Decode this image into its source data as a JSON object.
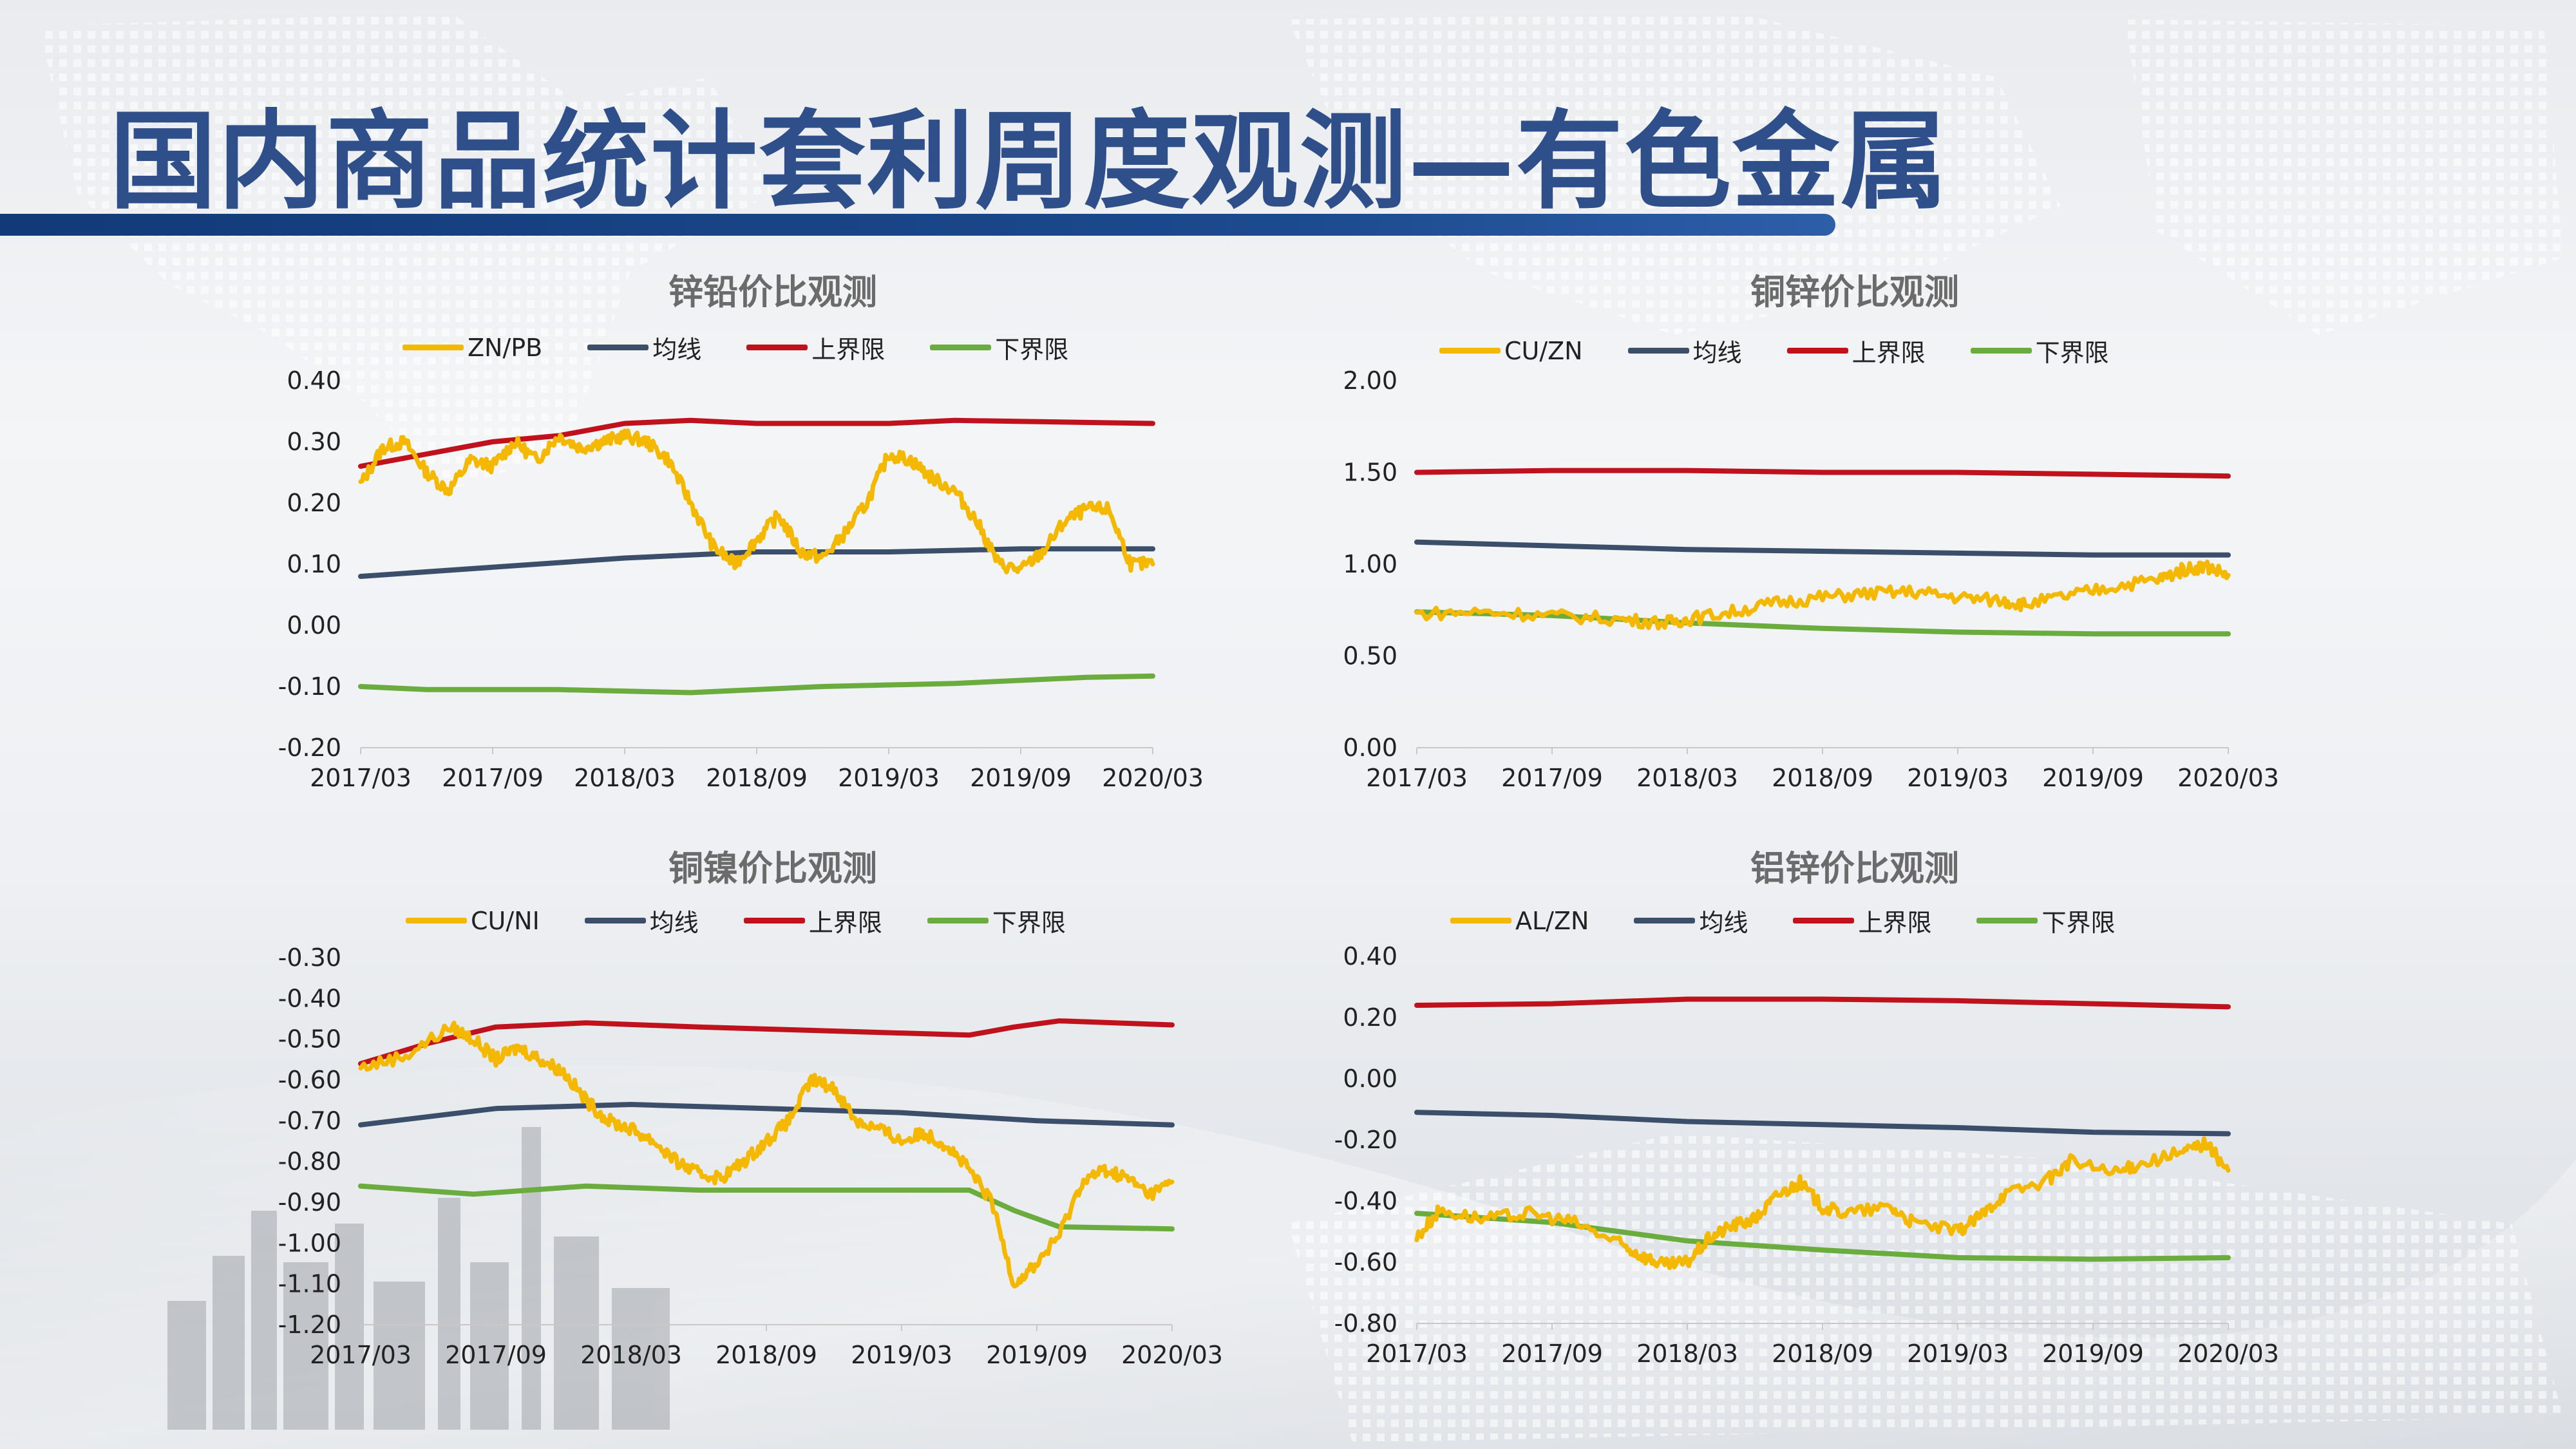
{
  "page": {
    "title": "国内商品统计套利周度观测—有色金属"
  },
  "colors": {
    "ratio": "#f5b800",
    "mean": "#3c4f6a",
    "upper": "#c0121c",
    "lower": "#6aac3d",
    "title_blue": "#2f4f8a"
  },
  "chart_data": [
    {
      "id": "zn-pb",
      "type": "line",
      "title": "锌铅价比观测",
      "x_ticks": [
        "2017/03",
        "2017/09",
        "2018/03",
        "2018/09",
        "2019/03",
        "2019/09",
        "2020/03"
      ],
      "y_ticks": [
        "0.40",
        "0.30",
        "0.20",
        "0.10",
        "0.00",
        "-0.10",
        "-0.20"
      ],
      "ylim": [
        -0.2,
        0.4
      ],
      "xlim": [
        0,
        36
      ],
      "series": [
        {
          "name": "ZN/PB",
          "color": "#f5b800",
          "noisy": true,
          "values": [
            [
              0,
              0.23
            ],
            [
              1,
              0.29
            ],
            [
              2,
              0.3
            ],
            [
              3,
              0.25
            ],
            [
              4,
              0.22
            ],
            [
              5,
              0.27
            ],
            [
              6,
              0.26
            ],
            [
              7,
              0.3
            ],
            [
              8,
              0.27
            ],
            [
              9,
              0.31
            ],
            [
              10,
              0.29
            ],
            [
              11,
              0.3
            ],
            [
              12,
              0.31
            ],
            [
              13,
              0.3
            ],
            [
              14,
              0.27
            ],
            [
              15,
              0.2
            ],
            [
              16,
              0.13
            ],
            [
              17,
              0.1
            ],
            [
              18,
              0.14
            ],
            [
              19,
              0.18
            ],
            [
              20,
              0.12
            ],
            [
              21,
              0.11
            ],
            [
              22,
              0.15
            ],
            [
              23,
              0.2
            ],
            [
              24,
              0.28
            ],
            [
              25,
              0.27
            ],
            [
              26,
              0.24
            ],
            [
              27,
              0.22
            ],
            [
              28,
              0.17
            ],
            [
              29,
              0.1
            ],
            [
              30,
              0.09
            ],
            [
              31,
              0.12
            ],
            [
              32,
              0.17
            ],
            [
              33,
              0.19
            ],
            [
              34,
              0.19
            ],
            [
              35,
              0.1
            ],
            [
              36,
              0.1
            ]
          ]
        },
        {
          "name": "均线",
          "color": "#3c4f6a",
          "values": [
            [
              0,
              0.08
            ],
            [
              6,
              0.095
            ],
            [
              12,
              0.11
            ],
            [
              18,
              0.12
            ],
            [
              24,
              0.12
            ],
            [
              30,
              0.125
            ],
            [
              36,
              0.125
            ]
          ]
        },
        {
          "name": "上界限",
          "color": "#c0121c",
          "values": [
            [
              0,
              0.26
            ],
            [
              3,
              0.28
            ],
            [
              6,
              0.3
            ],
            [
              9,
              0.31
            ],
            [
              12,
              0.33
            ],
            [
              15,
              0.335
            ],
            [
              18,
              0.33
            ],
            [
              24,
              0.33
            ],
            [
              27,
              0.335
            ],
            [
              36,
              0.33
            ]
          ]
        },
        {
          "name": "下界限",
          "color": "#6aac3d",
          "values": [
            [
              0,
              -0.1
            ],
            [
              3,
              -0.105
            ],
            [
              9,
              -0.105
            ],
            [
              15,
              -0.11
            ],
            [
              21,
              -0.1
            ],
            [
              27,
              -0.095
            ],
            [
              33,
              -0.085
            ],
            [
              36,
              -0.083
            ]
          ]
        }
      ]
    },
    {
      "id": "cu-zn",
      "type": "line",
      "title": "铜锌价比观测",
      "x_ticks": [
        "2017/03",
        "2017/09",
        "2018/03",
        "2018/09",
        "2019/03",
        "2019/09",
        "2020/03"
      ],
      "y_ticks": [
        "2.00",
        "1.50",
        "1.00",
        "0.50",
        "0.00"
      ],
      "ylim": [
        0,
        2
      ],
      "xlim": [
        0,
        36
      ],
      "series": [
        {
          "name": "CU/ZN",
          "color": "#f5b800",
          "noisy": true,
          "values": [
            [
              0,
              0.73
            ],
            [
              3,
              0.74
            ],
            [
              6,
              0.72
            ],
            [
              9,
              0.7
            ],
            [
              11,
              0.68
            ],
            [
              12,
              0.7
            ],
            [
              14,
              0.74
            ],
            [
              16,
              0.79
            ],
            [
              18,
              0.82
            ],
            [
              20,
              0.84
            ],
            [
              22,
              0.85
            ],
            [
              24,
              0.82
            ],
            [
              26,
              0.8
            ],
            [
              27,
              0.78
            ],
            [
              29,
              0.83
            ],
            [
              31,
              0.88
            ],
            [
              33,
              0.92
            ],
            [
              34,
              0.97
            ],
            [
              35,
              0.99
            ],
            [
              36,
              0.94
            ]
          ]
        },
        {
          "name": "均线",
          "color": "#3c4f6a",
          "values": [
            [
              0,
              1.12
            ],
            [
              6,
              1.1
            ],
            [
              12,
              1.08
            ],
            [
              18,
              1.07
            ],
            [
              24,
              1.06
            ],
            [
              30,
              1.05
            ],
            [
              36,
              1.05
            ]
          ]
        },
        {
          "name": "上界限",
          "color": "#c0121c",
          "values": [
            [
              0,
              1.5
            ],
            [
              6,
              1.51
            ],
            [
              12,
              1.51
            ],
            [
              18,
              1.5
            ],
            [
              24,
              1.5
            ],
            [
              30,
              1.49
            ],
            [
              36,
              1.48
            ]
          ]
        },
        {
          "name": "下界限",
          "color": "#6aac3d",
          "values": [
            [
              0,
              0.74
            ],
            [
              6,
              0.72
            ],
            [
              12,
              0.68
            ],
            [
              18,
              0.65
            ],
            [
              24,
              0.63
            ],
            [
              30,
              0.62
            ],
            [
              36,
              0.62
            ]
          ]
        }
      ]
    },
    {
      "id": "cu-ni",
      "type": "line",
      "title": "铜镍价比观测",
      "x_ticks": [
        "2017/03",
        "2017/09",
        "2018/03",
        "2018/09",
        "2019/03",
        "2019/09",
        "2020/03"
      ],
      "y_ticks": [
        "-0.30",
        "-0.40",
        "-0.50",
        "-0.60",
        "-0.70",
        "-0.80",
        "-0.90",
        "-1.00",
        "-1.10",
        "-1.20"
      ],
      "ylim": [
        -1.2,
        -0.3
      ],
      "xlim": [
        0,
        36
      ],
      "series": [
        {
          "name": "CU/NI",
          "color": "#f5b800",
          "noisy": true,
          "values": [
            [
              0,
              -0.57
            ],
            [
              2,
              -0.54
            ],
            [
              4,
              -0.47
            ],
            [
              5,
              -0.5
            ],
            [
              6,
              -0.55
            ],
            [
              7,
              -0.52
            ],
            [
              8,
              -0.55
            ],
            [
              9,
              -0.58
            ],
            [
              10,
              -0.65
            ],
            [
              11,
              -0.7
            ],
            [
              12,
              -0.72
            ],
            [
              13,
              -0.75
            ],
            [
              14,
              -0.8
            ],
            [
              15,
              -0.83
            ],
            [
              16,
              -0.84
            ],
            [
              17,
              -0.8
            ],
            [
              18,
              -0.75
            ],
            [
              19,
              -0.7
            ],
            [
              20,
              -0.6
            ],
            [
              21,
              -0.62
            ],
            [
              22,
              -0.7
            ],
            [
              23,
              -0.72
            ],
            [
              24,
              -0.75
            ],
            [
              25,
              -0.73
            ],
            [
              26,
              -0.76
            ],
            [
              27,
              -0.82
            ],
            [
              28,
              -0.9
            ],
            [
              29,
              -1.1
            ],
            [
              30,
              -1.05
            ],
            [
              31,
              -0.98
            ],
            [
              32,
              -0.85
            ],
            [
              33,
              -0.82
            ],
            [
              34,
              -0.84
            ],
            [
              35,
              -0.88
            ],
            [
              36,
              -0.85
            ]
          ]
        },
        {
          "name": "均线",
          "color": "#3c4f6a",
          "values": [
            [
              0,
              -0.71
            ],
            [
              6,
              -0.67
            ],
            [
              12,
              -0.66
            ],
            [
              18,
              -0.67
            ],
            [
              24,
              -0.68
            ],
            [
              30,
              -0.7
            ],
            [
              36,
              -0.71
            ]
          ]
        },
        {
          "name": "上界限",
          "color": "#c0121c",
          "values": [
            [
              0,
              -0.56
            ],
            [
              3,
              -0.51
            ],
            [
              6,
              -0.47
            ],
            [
              10,
              -0.46
            ],
            [
              15,
              -0.47
            ],
            [
              21,
              -0.48
            ],
            [
              27,
              -0.49
            ],
            [
              29,
              -0.47
            ],
            [
              31,
              -0.455
            ],
            [
              36,
              -0.465
            ]
          ]
        },
        {
          "name": "下界限",
          "color": "#6aac3d",
          "values": [
            [
              0,
              -0.86
            ],
            [
              5,
              -0.88
            ],
            [
              10,
              -0.86
            ],
            [
              15,
              -0.87
            ],
            [
              20,
              -0.87
            ],
            [
              27,
              -0.87
            ],
            [
              29,
              -0.92
            ],
            [
              31,
              -0.96
            ],
            [
              36,
              -0.965
            ]
          ]
        }
      ]
    },
    {
      "id": "al-zn",
      "type": "line",
      "title": "铝锌价比观测",
      "x_ticks": [
        "2017/03",
        "2017/09",
        "2018/03",
        "2018/09",
        "2019/03",
        "2019/09",
        "2020/03"
      ],
      "y_ticks": [
        "0.40",
        "0.20",
        "0.00",
        "-0.20",
        "-0.40",
        "-0.60",
        "-0.80"
      ],
      "ylim": [
        -0.8,
        0.4
      ],
      "xlim": [
        0,
        36
      ],
      "series": [
        {
          "name": "AL/ZN",
          "color": "#f5b800",
          "noisy": true,
          "values": [
            [
              0,
              -0.52
            ],
            [
              1,
              -0.43
            ],
            [
              3,
              -0.46
            ],
            [
              5,
              -0.44
            ],
            [
              7,
              -0.47
            ],
            [
              9,
              -0.54
            ],
            [
              10,
              -0.58
            ],
            [
              11,
              -0.61
            ],
            [
              12,
              -0.6
            ],
            [
              13,
              -0.52
            ],
            [
              14,
              -0.48
            ],
            [
              15,
              -0.46
            ],
            [
              16,
              -0.38
            ],
            [
              17,
              -0.34
            ],
            [
              18,
              -0.42
            ],
            [
              19,
              -0.44
            ],
            [
              21,
              -0.42
            ],
            [
              22,
              -0.47
            ],
            [
              24,
              -0.5
            ],
            [
              25,
              -0.45
            ],
            [
              26,
              -0.38
            ],
            [
              28,
              -0.33
            ],
            [
              29,
              -0.27
            ],
            [
              31,
              -0.31
            ],
            [
              32,
              -0.28
            ],
            [
              34,
              -0.24
            ],
            [
              35,
              -0.21
            ],
            [
              36,
              -0.3
            ]
          ]
        },
        {
          "name": "均线",
          "color": "#3c4f6a",
          "values": [
            [
              0,
              -0.11
            ],
            [
              6,
              -0.12
            ],
            [
              12,
              -0.14
            ],
            [
              18,
              -0.15
            ],
            [
              24,
              -0.16
            ],
            [
              30,
              -0.175
            ],
            [
              36,
              -0.18
            ]
          ]
        },
        {
          "name": "上界限",
          "color": "#c0121c",
          "values": [
            [
              0,
              0.24
            ],
            [
              6,
              0.245
            ],
            [
              12,
              0.26
            ],
            [
              18,
              0.26
            ],
            [
              24,
              0.255
            ],
            [
              30,
              0.245
            ],
            [
              36,
              0.235
            ]
          ]
        },
        {
          "name": "下界限",
          "color": "#6aac3d",
          "values": [
            [
              0,
              -0.44
            ],
            [
              6,
              -0.47
            ],
            [
              12,
              -0.53
            ],
            [
              18,
              -0.56
            ],
            [
              24,
              -0.585
            ],
            [
              30,
              -0.59
            ],
            [
              36,
              -0.585
            ]
          ]
        }
      ]
    }
  ]
}
